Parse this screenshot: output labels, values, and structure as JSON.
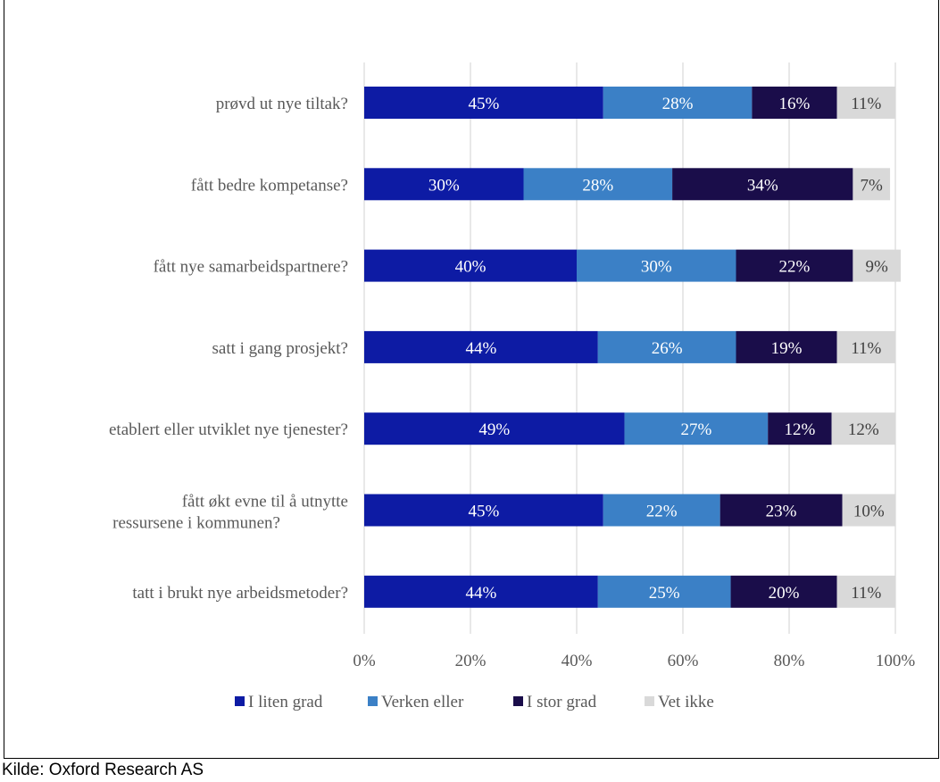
{
  "source": "Kilde: Oxford Research AS",
  "colors": {
    "I liten grad": "#0D1BA4",
    "Verken eller": "#3B80C6",
    "I stor grad": "#1A0D4A",
    "Vet ikke": "#D9D9D9",
    "gridline": "#D9D9D9"
  },
  "chart_data": {
    "type": "bar",
    "orientation": "horizontal",
    "stacked": true,
    "normalized": true,
    "categories": [
      "prøvd ut nye tiltak?",
      "fått bedre kompetanse?",
      "fått nye samarbeidspartnere?",
      "satt i gang prosjekt?",
      "etablert eller utviklet nye tjenester?",
      "fått økt evne til å utnytte ressursene i kommunen?",
      "tatt i brukt nye arbeidsmetoder?"
    ],
    "series": [
      {
        "name": "I liten grad",
        "values": [
          45,
          30,
          40,
          44,
          49,
          45,
          44
        ],
        "labels": [
          "45%",
          "30%",
          "40%",
          "44%",
          "49%",
          "45%",
          "44%"
        ]
      },
      {
        "name": "Verken eller",
        "values": [
          28,
          28,
          30,
          26,
          27,
          22,
          25
        ],
        "labels": [
          "28%",
          "28%",
          "30%",
          "26%",
          "27%",
          "22%",
          "25%"
        ]
      },
      {
        "name": "I stor grad",
        "values": [
          16,
          34,
          22,
          19,
          12,
          23,
          20
        ],
        "labels": [
          "16%",
          "34%",
          "22%",
          "19%",
          "12%",
          "23%",
          "20%"
        ]
      },
      {
        "name": "Vet ikke",
        "values": [
          11,
          7,
          9,
          11,
          12,
          10,
          11
        ],
        "labels": [
          "11%",
          "7%",
          "9%",
          "11%",
          "12%",
          "10%",
          "11%"
        ]
      }
    ],
    "x_ticks": [
      "0%",
      "20%",
      "40%",
      "60%",
      "80%",
      "100%"
    ],
    "xlim": [
      0,
      100
    ],
    "grid": true,
    "legend_position": "bottom"
  }
}
